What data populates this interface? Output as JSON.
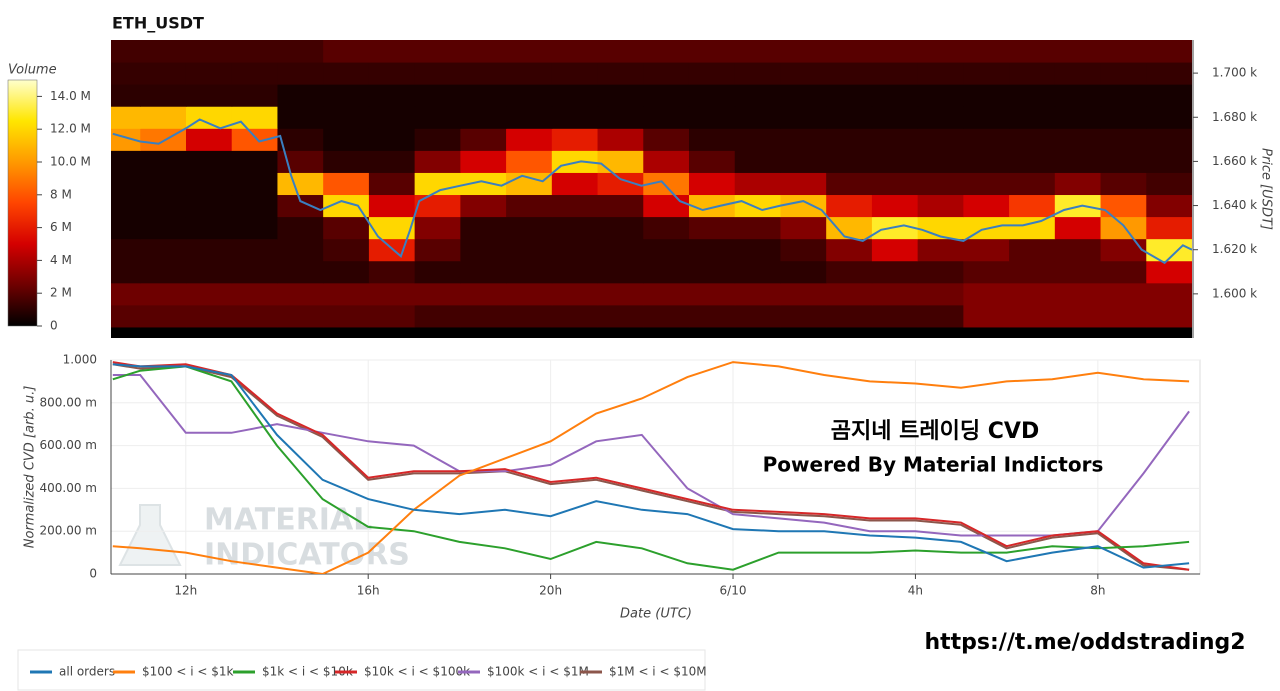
{
  "chart_data": [
    {
      "type": "heatmap",
      "title": "ETH_USDT",
      "x_bins": [
        10,
        11,
        12,
        13,
        14,
        15,
        16,
        17,
        18,
        19,
        20,
        21,
        22,
        23,
        24,
        25,
        26,
        27,
        28,
        29,
        30,
        31,
        32,
        33,
        34
      ],
      "y_bins": [
        1585,
        1595,
        1605,
        1615,
        1625,
        1635,
        1645,
        1655,
        1665,
        1675,
        1685,
        1695,
        1705,
        1715
      ],
      "z": [
        [
          2,
          2,
          2,
          2,
          2,
          2,
          2,
          1.5,
          1.5,
          1.5,
          1.5,
          1.5,
          1.5,
          1.5,
          1.5,
          1.5,
          1.5,
          1.5,
          1.5,
          3,
          3,
          3,
          3,
          3
        ],
        [
          2.5,
          2.5,
          2.5,
          2.5,
          2.5,
          2.5,
          2.5,
          2.5,
          2.5,
          2.5,
          2.5,
          2.5,
          2.5,
          2.5,
          2.5,
          2.5,
          2.5,
          2.5,
          2.5,
          3,
          3,
          3,
          3,
          3
        ],
        [
          1,
          1,
          1,
          1,
          1,
          1,
          1.5,
          1,
          1,
          1,
          1,
          1,
          1,
          1,
          1,
          1,
          1.5,
          1.5,
          1.5,
          2,
          2,
          2,
          2,
          5
        ],
        [
          1,
          1,
          1,
          1,
          1,
          1.5,
          6,
          2,
          1,
          1,
          1,
          1,
          1,
          1,
          1,
          1.5,
          3,
          5,
          3,
          3,
          2,
          2,
          3,
          13
        ],
        [
          0.5,
          0.5,
          0.5,
          0.5,
          1,
          2,
          12,
          3,
          1,
          1,
          1,
          1,
          1.5,
          2,
          2,
          3,
          11,
          13,
          12,
          12,
          12,
          5,
          10,
          6
        ],
        [
          0.5,
          0.5,
          0.5,
          0.5,
          2,
          12,
          5,
          6,
          3,
          2,
          2,
          2,
          5,
          11,
          12,
          11,
          6,
          5,
          4,
          5,
          7,
          13,
          8,
          3
        ],
        [
          0.5,
          0.5,
          0.5,
          0.5,
          11,
          8,
          2,
          12,
          12,
          11,
          5,
          6,
          9,
          5,
          4,
          4,
          2,
          2,
          2,
          2,
          2,
          3,
          2,
          1.5
        ],
        [
          0.5,
          0.5,
          0.5,
          0.5,
          2,
          1,
          1,
          3,
          5,
          8,
          12,
          11,
          4,
          2,
          1,
          1,
          1,
          1,
          1,
          1,
          1,
          1,
          1,
          1
        ],
        [
          10,
          9,
          5,
          8,
          1,
          0.5,
          0.5,
          1,
          2,
          5,
          6,
          4,
          2,
          1,
          1,
          1,
          1,
          1,
          1,
          1,
          1,
          1,
          1,
          1
        ],
        [
          11,
          11,
          12,
          12,
          0.5,
          0.5,
          0.5,
          0.5,
          0.5,
          0.5,
          0.5,
          0.5,
          0.5,
          0.5,
          0.5,
          0.5,
          0.5,
          0.5,
          0.5,
          0.5,
          0.5,
          0.5,
          0.5,
          0.5
        ],
        [
          1,
          1,
          1,
          1,
          0.5,
          0.5,
          0.5,
          0.5,
          0.5,
          0.5,
          0.5,
          0.5,
          0.5,
          0.5,
          0.5,
          0.5,
          0.5,
          0.5,
          0.5,
          0.5,
          0.5,
          0.5,
          0.5,
          0.5
        ],
        [
          1.2,
          1.2,
          1.2,
          1.2,
          1.2,
          1.2,
          1.2,
          1.2,
          1.2,
          1.2,
          1.2,
          1.2,
          1.2,
          1.2,
          1.2,
          1.2,
          1.2,
          1.2,
          1.2,
          1.2,
          1.2,
          1.2,
          1.2,
          1.2
        ],
        [
          1.5,
          1.5,
          1.5,
          1.5,
          1.5,
          2,
          2,
          2,
          2,
          2,
          2,
          2,
          2,
          2,
          2,
          2,
          2,
          2,
          2,
          2,
          2,
          2,
          2,
          2
        ]
      ],
      "colorscale": [
        "#000000",
        "#6e0000",
        "#d40000",
        "#ff4500",
        "#ff9900",
        "#ffe600",
        "#ffffcc"
      ],
      "colorbar_title": "Volume",
      "colorbar_lim": [
        0,
        15
      ],
      "colorbar_ticks": [
        0,
        {
          "value": 2,
          "label": "2 M"
        },
        {
          "value": 4,
          "label": "4 M"
        },
        {
          "value": 6,
          "label": "6 M"
        },
        {
          "value": 8,
          "label": "8 M"
        },
        {
          "value": 10,
          "label": "10.0 M"
        },
        {
          "value": 12,
          "label": "12.0 M"
        },
        {
          "value": 14,
          "label": "14.0 M"
        }
      ],
      "y2label": "Price [USDT]",
      "ylim": [
        1580,
        1715
      ],
      "yticks": [
        {
          "value": 1600,
          "label": "1.600 k"
        },
        {
          "value": 1620,
          "label": "1.620 k"
        },
        {
          "value": 1640,
          "label": "1.640 k"
        },
        {
          "value": 1660,
          "label": "1.660 k"
        },
        {
          "value": 1680,
          "label": "1.680 k"
        },
        {
          "value": 1700,
          "label": "1.700 k"
        }
      ],
      "xlim": [
        10.36,
        34.0
      ],
      "line": {
        "color": "#3a7fc0",
        "x": [
          10.4,
          11.0,
          11.4,
          12.0,
          12.3,
          12.75,
          13.2,
          13.6,
          14.06,
          14.3,
          14.5,
          14.94,
          15.4,
          15.76,
          16.2,
          16.7,
          16.9,
          17.1,
          17.56,
          18.0,
          18.46,
          18.9,
          19.35,
          19.8,
          20.2,
          20.64,
          21.08,
          21.5,
          21.96,
          22.4,
          22.8,
          23.3,
          23.7,
          24.15,
          24.6,
          25.0,
          25.5,
          25.9,
          26.4,
          26.8,
          27.2,
          27.7,
          28.1,
          28.5,
          29.0,
          29.4,
          29.85,
          30.3,
          30.7,
          31.2,
          31.6,
          32.1,
          32.5,
          32.9,
          33.4,
          33.8,
          34.0
        ],
        "values": [
          1672.5,
          1669,
          1668,
          1675,
          1679,
          1675,
          1678,
          1669,
          1671.5,
          1653.5,
          1642,
          1638,
          1642,
          1640,
          1626,
          1617,
          1629,
          1642,
          1647,
          1649,
          1651,
          1649,
          1653.5,
          1651,
          1658,
          1660,
          1659,
          1652,
          1649,
          1651,
          1642,
          1638,
          1640,
          1642,
          1638,
          1640,
          1642,
          1638,
          1626,
          1624,
          1629,
          1631,
          1629,
          1626,
          1624,
          1629,
          1631,
          1631,
          1633,
          1638,
          1640,
          1638,
          1631,
          1620,
          1614,
          1622,
          1620
        ]
      }
    },
    {
      "type": "line",
      "xlabel": "Date (UTC)",
      "ylabel": "Normalized CVD [arb. u.]",
      "x": [
        10.4,
        11,
        12,
        13,
        14,
        15,
        16,
        17,
        18,
        19,
        20,
        21,
        22,
        23,
        24,
        25,
        26,
        27,
        28,
        29,
        30,
        31,
        32,
        33,
        34
      ],
      "xlim": [
        10.36,
        34.24
      ],
      "xticks": [
        {
          "value": 12,
          "label": "12h"
        },
        {
          "value": 16,
          "label": "16h"
        },
        {
          "value": 20,
          "label": "20h"
        },
        {
          "value": 24,
          "label": "6/10"
        },
        {
          "value": 28,
          "label": "4h"
        },
        {
          "value": 32,
          "label": "8h"
        }
      ],
      "ylim": [
        0,
        1
      ],
      "yticks": [
        0,
        {
          "value": 0.2,
          "label": "200.00 m"
        },
        {
          "value": 0.4,
          "label": "400.00 m"
        },
        {
          "value": 0.6,
          "label": "600.00 m"
        },
        {
          "value": 0.8,
          "label": "800.00 m"
        },
        {
          "value": 1,
          "label": "1.000"
        }
      ],
      "series": [
        {
          "name": "all orders",
          "color": "#1f77b4",
          "values": [
            0.98,
            0.97,
            0.97,
            0.93,
            0.65,
            0.44,
            0.35,
            0.3,
            0.28,
            0.3,
            0.27,
            0.34,
            0.3,
            0.28,
            0.21,
            0.2,
            0.2,
            0.18,
            0.17,
            0.15,
            0.06,
            0.1,
            0.13,
            0.03,
            0.05
          ]
        },
        {
          "name": "$100 < i < $1k",
          "color": "#ff7f0e",
          "values": [
            0.13,
            0.12,
            0.1,
            0.06,
            0.03,
            0.0,
            0.1,
            0.3,
            0.46,
            0.54,
            0.62,
            0.75,
            0.82,
            0.92,
            0.99,
            0.97,
            0.93,
            0.9,
            0.89,
            0.87,
            0.9,
            0.91,
            0.94,
            0.91,
            0.9
          ]
        },
        {
          "name": "$1k < i < $10k",
          "color": "#2ca02c",
          "values": [
            0.91,
            0.95,
            0.97,
            0.9,
            0.6,
            0.35,
            0.22,
            0.2,
            0.15,
            0.12,
            0.07,
            0.15,
            0.12,
            0.05,
            0.02,
            0.1,
            0.1,
            0.1,
            0.11,
            0.1,
            0.1,
            0.13,
            0.12,
            0.13,
            0.15
          ]
        },
        {
          "name": "$10k < i < $100k",
          "color": "#d62728",
          "values": [
            0.99,
            0.97,
            0.98,
            0.93,
            0.75,
            0.65,
            0.45,
            0.48,
            0.48,
            0.49,
            0.43,
            0.45,
            0.4,
            0.35,
            0.3,
            0.29,
            0.28,
            0.26,
            0.26,
            0.24,
            0.13,
            0.18,
            0.2,
            0.05,
            0.02
          ]
        },
        {
          "name": "$100k < i < $1M",
          "color": "#9467bd",
          "values": [
            0.93,
            0.93,
            0.66,
            0.66,
            0.7,
            0.66,
            0.62,
            0.6,
            0.48,
            0.48,
            0.51,
            0.62,
            0.65,
            0.4,
            0.28,
            0.26,
            0.24,
            0.2,
            0.2,
            0.18,
            0.18,
            0.18,
            0.2,
            0.47,
            0.76
          ]
        },
        {
          "name": "$1M < i < $10M",
          "color": "#8c564b",
          "values": [
            0.98,
            0.96,
            0.97,
            0.92,
            0.74,
            0.64,
            0.44,
            0.47,
            0.47,
            0.48,
            0.42,
            0.44,
            0.39,
            0.34,
            0.29,
            0.28,
            0.27,
            0.25,
            0.25,
            0.23,
            0.12,
            0.17,
            0.19,
            0.04,
            0.02
          ]
        }
      ],
      "watermark": [
        "MATERIAL",
        "INDICATORS"
      ],
      "annotations": [
        "곰지네 트레이딩 CVD",
        "Powered By Material Indictors",
        "https://t.me/oddstrading2"
      ]
    }
  ]
}
